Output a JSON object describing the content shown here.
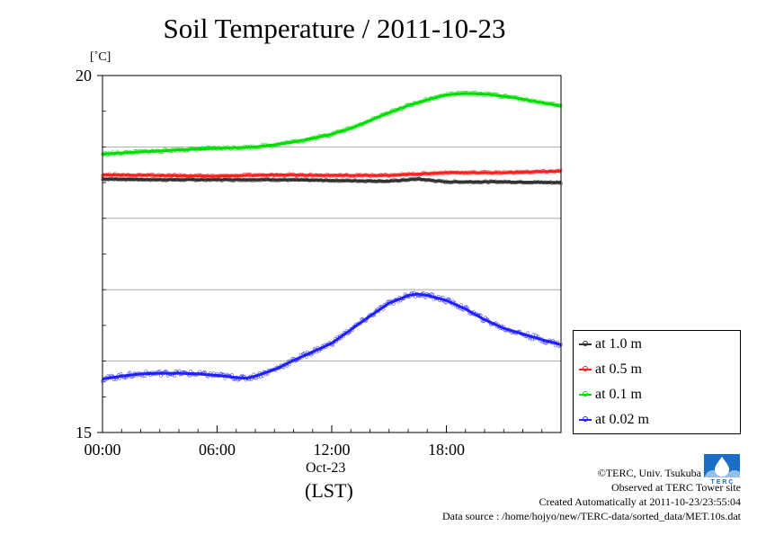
{
  "chart_data": {
    "type": "line",
    "title": "Soil Temperature / 2011-10-23",
    "ylabel": "[˚C]",
    "xlabel": "(LST)",
    "date_label": "Oct-23",
    "ylim": [
      15,
      20
    ],
    "y_ticks": [
      "20",
      "15"
    ],
    "y_grid": [
      16,
      17,
      18,
      19
    ],
    "xlim": [
      0,
      24
    ],
    "x_ticks": [
      {
        "value": 0,
        "label": "00:00"
      },
      {
        "value": 6,
        "label": "06:00"
      },
      {
        "value": 12,
        "label": "12:00"
      },
      {
        "value": 18,
        "label": "18:00"
      }
    ],
    "grid": true,
    "legend_position": "right",
    "series": [
      {
        "name": "at 1.0 m",
        "color": "#303030",
        "x": [
          0,
          3,
          6,
          9,
          12,
          15,
          16.5,
          18,
          21,
          24
        ],
        "y": [
          18.55,
          18.54,
          18.54,
          18.54,
          18.53,
          18.52,
          18.55,
          18.51,
          18.51,
          18.5
        ]
      },
      {
        "name": "at 0.5 m",
        "color": "#ff2020",
        "x": [
          0,
          3,
          6,
          9,
          12,
          15,
          16.5,
          18,
          21,
          24
        ],
        "y": [
          18.61,
          18.6,
          18.59,
          18.61,
          18.6,
          18.6,
          18.62,
          18.64,
          18.64,
          18.66
        ]
      },
      {
        "name": "at 0.1 m",
        "color": "#00dd00",
        "x": [
          0,
          2,
          4,
          6,
          8,
          9,
          10,
          11,
          12,
          13,
          14,
          15,
          16,
          17,
          18,
          19,
          20,
          21,
          22,
          23,
          24
        ],
        "y": [
          18.9,
          18.93,
          18.96,
          18.98,
          19.0,
          19.03,
          19.07,
          19.12,
          19.18,
          19.26,
          19.37,
          19.48,
          19.58,
          19.66,
          19.73,
          19.75,
          19.74,
          19.71,
          19.67,
          19.62,
          19.57
        ]
      },
      {
        "name": "at 0.02 m",
        "color": "#2020ff",
        "x": [
          0,
          1,
          2,
          3,
          4,
          5,
          6,
          7,
          7.5,
          8,
          9,
          10,
          11,
          12,
          13,
          14,
          15,
          16,
          16.5,
          17,
          18,
          19,
          20,
          21,
          22,
          23,
          24
        ],
        "y": [
          15.75,
          15.79,
          15.82,
          15.83,
          15.83,
          15.82,
          15.8,
          15.77,
          15.76,
          15.79,
          15.88,
          16.01,
          16.13,
          16.25,
          16.44,
          16.63,
          16.81,
          16.92,
          16.94,
          16.92,
          16.85,
          16.73,
          16.58,
          16.46,
          16.38,
          16.3,
          16.23
        ]
      }
    ]
  },
  "credits": {
    "copyright": "©TERC, Univ. Tsukuba",
    "observed": "Observed at TERC Tower site",
    "created": "Created Automatically at 2011-10-23/23:55:04",
    "source": "Data source : /home/hojyo/new/TERC-data/sorted_data/MET.10s.dat"
  },
  "logo": {
    "text": "TERC",
    "color": "#1a6fc4"
  }
}
